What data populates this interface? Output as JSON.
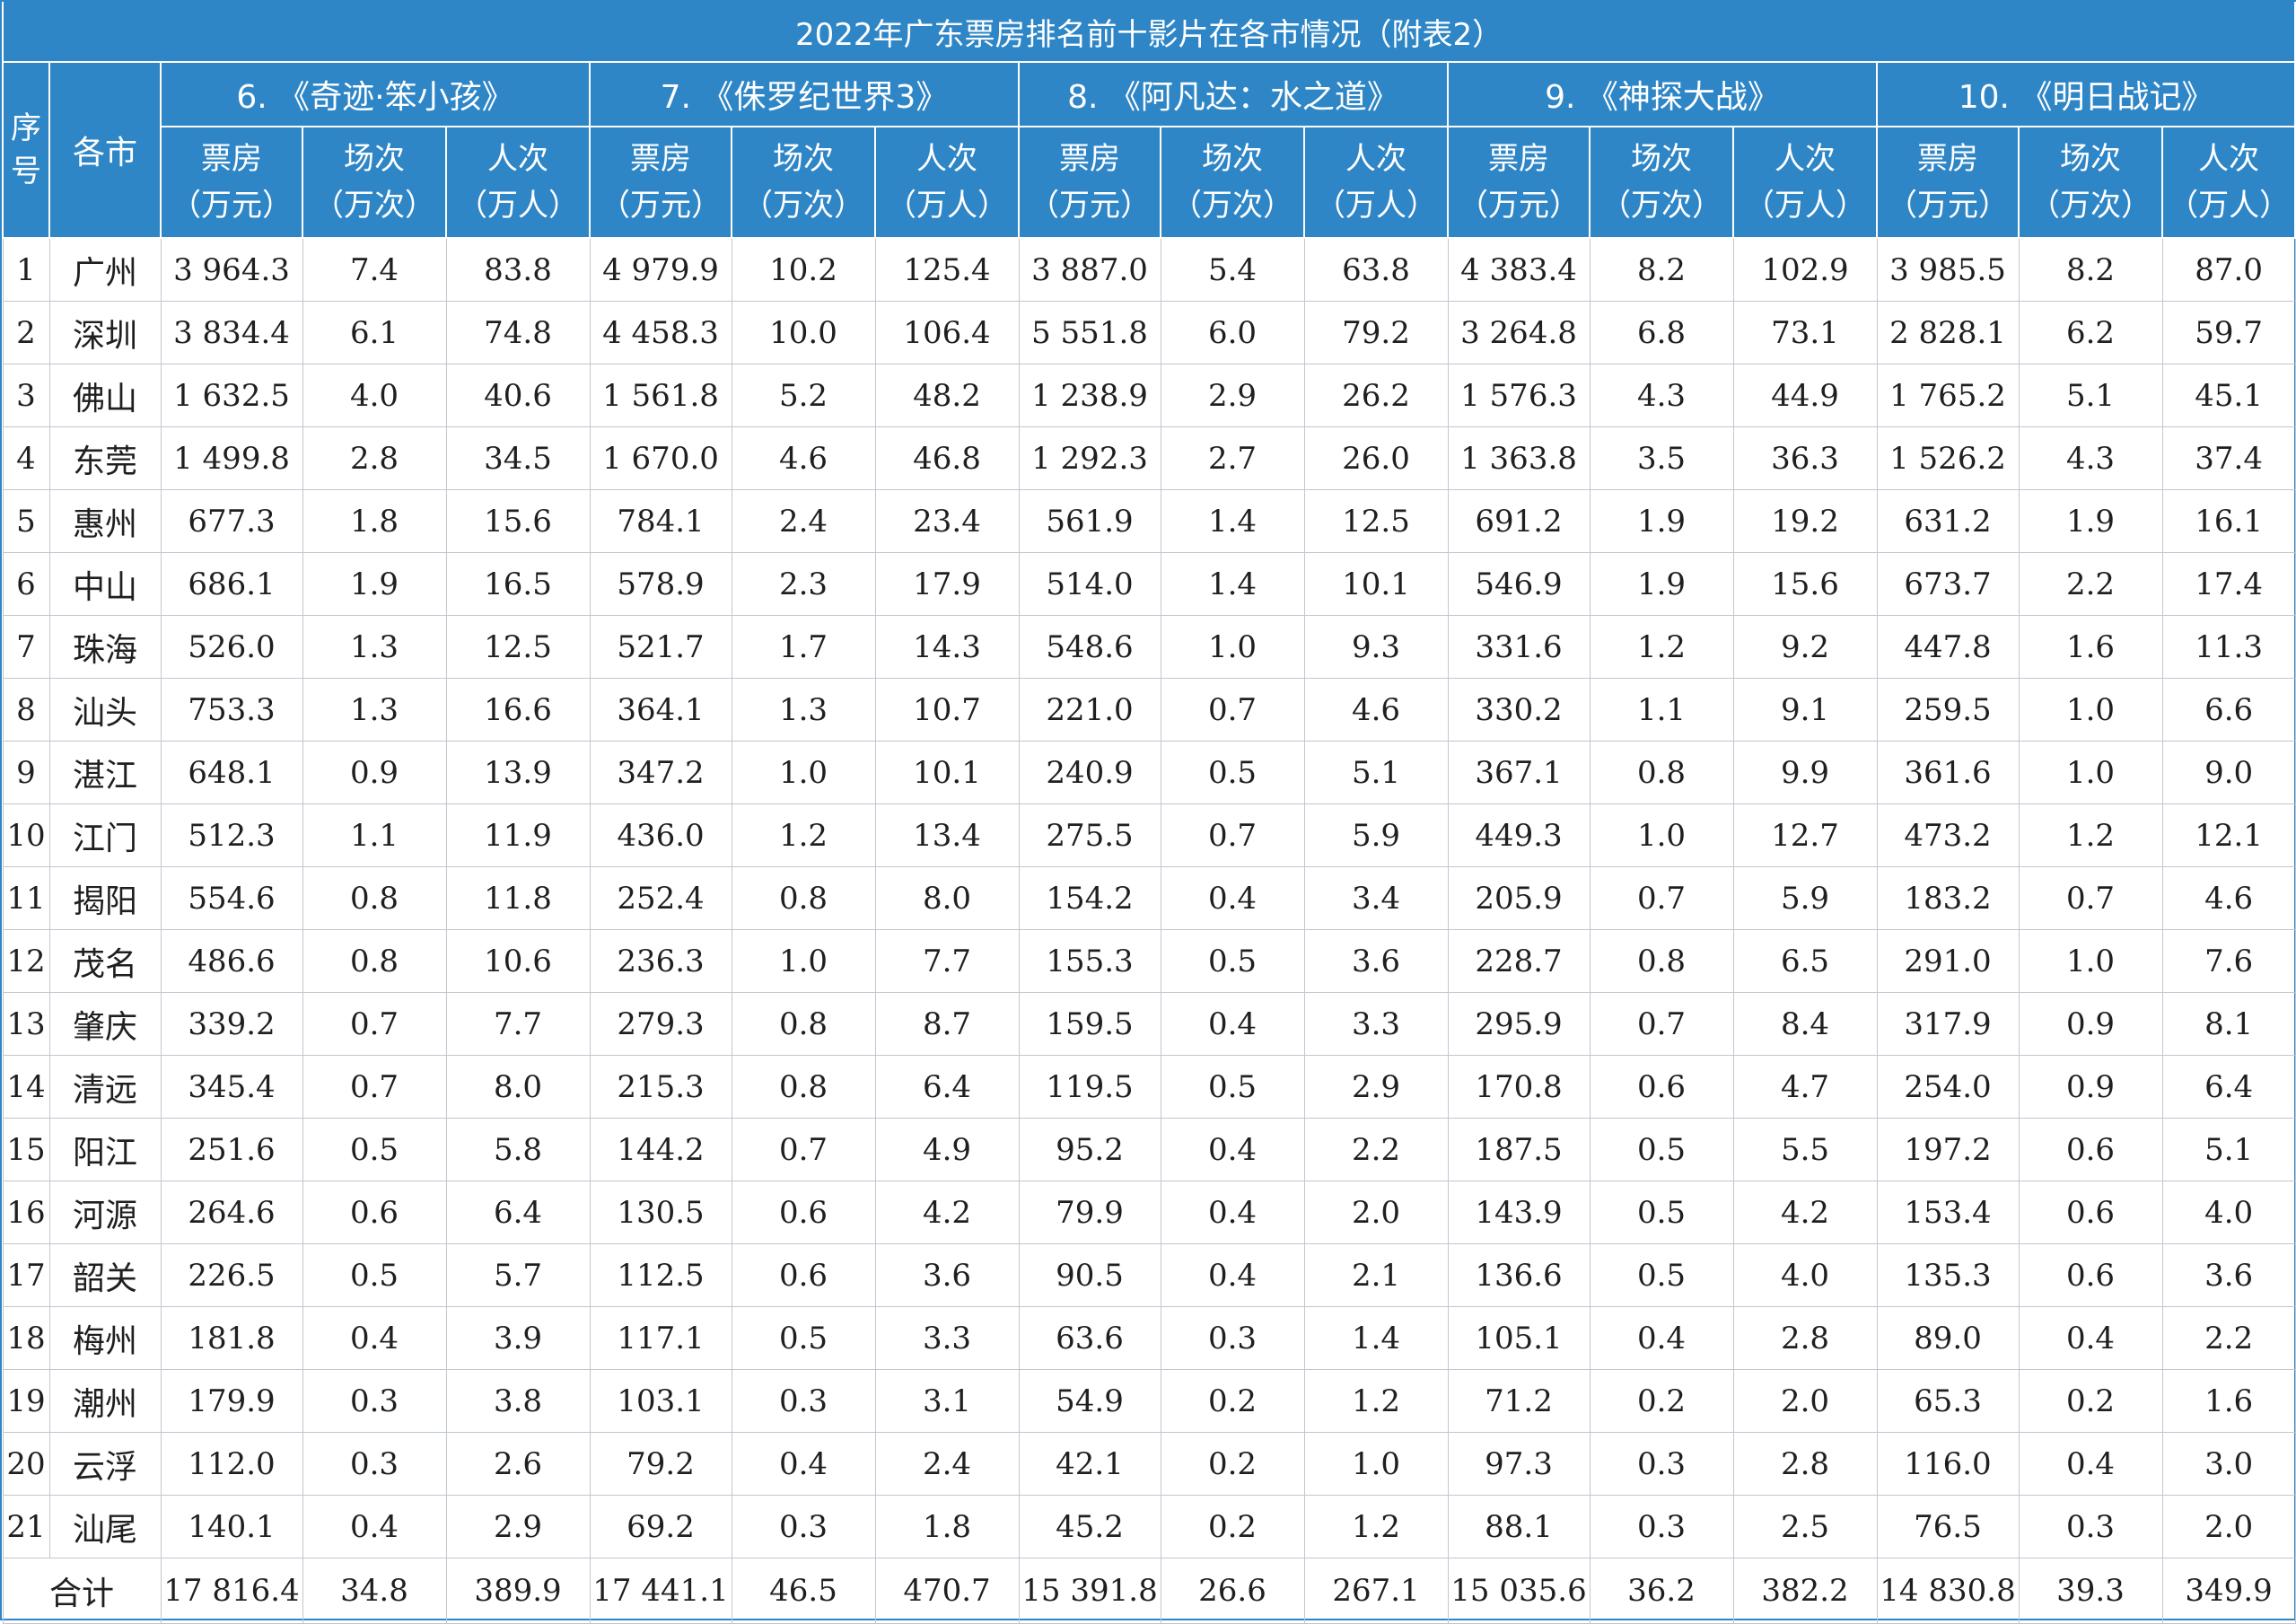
{
  "title": "2022年广东票房排名前十影片在各市情况（附表2）",
  "headers": {
    "index": [
      "序",
      "号"
    ],
    "city": "各市",
    "films": [
      "6. 《奇迹·笨小孩》",
      "7. 《侏罗纪世界3》",
      "8. 《阿凡达：水之道》",
      "9. 《神探大战》",
      "10. 《明日战记》"
    ],
    "metrics": [
      [
        "票房",
        "（万元）"
      ],
      [
        "场次",
        "（万次）"
      ],
      [
        "人次",
        "（万人）"
      ]
    ]
  },
  "rows": [
    {
      "index": "1",
      "city": "广州",
      "values": [
        "3 964.3",
        "7.4",
        "83.8",
        "4 979.9",
        "10.2",
        "125.4",
        "3 887.0",
        "5.4",
        "63.8",
        "4 383.4",
        "8.2",
        "102.9",
        "3 985.5",
        "8.2",
        "87.0"
      ]
    },
    {
      "index": "2",
      "city": "深圳",
      "values": [
        "3 834.4",
        "6.1",
        "74.8",
        "4 458.3",
        "10.0",
        "106.4",
        "5 551.8",
        "6.0",
        "79.2",
        "3 264.8",
        "6.8",
        "73.1",
        "2 828.1",
        "6.2",
        "59.7"
      ]
    },
    {
      "index": "3",
      "city": "佛山",
      "values": [
        "1 632.5",
        "4.0",
        "40.6",
        "1 561.8",
        "5.2",
        "48.2",
        "1 238.9",
        "2.9",
        "26.2",
        "1 576.3",
        "4.3",
        "44.9",
        "1 765.2",
        "5.1",
        "45.1"
      ]
    },
    {
      "index": "4",
      "city": "东莞",
      "values": [
        "1 499.8",
        "2.8",
        "34.5",
        "1 670.0",
        "4.6",
        "46.8",
        "1 292.3",
        "2.7",
        "26.0",
        "1 363.8",
        "3.5",
        "36.3",
        "1 526.2",
        "4.3",
        "37.4"
      ]
    },
    {
      "index": "5",
      "city": "惠州",
      "values": [
        "677.3",
        "1.8",
        "15.6",
        "784.1",
        "2.4",
        "23.4",
        "561.9",
        "1.4",
        "12.5",
        "691.2",
        "1.9",
        "19.2",
        "631.2",
        "1.9",
        "16.1"
      ]
    },
    {
      "index": "6",
      "city": "中山",
      "values": [
        "686.1",
        "1.9",
        "16.5",
        "578.9",
        "2.3",
        "17.9",
        "514.0",
        "1.4",
        "10.1",
        "546.9",
        "1.9",
        "15.6",
        "673.7",
        "2.2",
        "17.4"
      ]
    },
    {
      "index": "7",
      "city": "珠海",
      "values": [
        "526.0",
        "1.3",
        "12.5",
        "521.7",
        "1.7",
        "14.3",
        "548.6",
        "1.0",
        "9.3",
        "331.6",
        "1.2",
        "9.2",
        "447.8",
        "1.6",
        "11.3"
      ]
    },
    {
      "index": "8",
      "city": "汕头",
      "values": [
        "753.3",
        "1.3",
        "16.6",
        "364.1",
        "1.3",
        "10.7",
        "221.0",
        "0.7",
        "4.6",
        "330.2",
        "1.1",
        "9.1",
        "259.5",
        "1.0",
        "6.6"
      ]
    },
    {
      "index": "9",
      "city": "湛江",
      "values": [
        "648.1",
        "0.9",
        "13.9",
        "347.2",
        "1.0",
        "10.1",
        "240.9",
        "0.5",
        "5.1",
        "367.1",
        "0.8",
        "9.9",
        "361.6",
        "1.0",
        "9.0"
      ]
    },
    {
      "index": "10",
      "city": "江门",
      "values": [
        "512.3",
        "1.1",
        "11.9",
        "436.0",
        "1.2",
        "13.4",
        "275.5",
        "0.7",
        "5.9",
        "449.3",
        "1.0",
        "12.7",
        "473.2",
        "1.2",
        "12.1"
      ]
    },
    {
      "index": "11",
      "city": "揭阳",
      "values": [
        "554.6",
        "0.8",
        "11.8",
        "252.4",
        "0.8",
        "8.0",
        "154.2",
        "0.4",
        "3.4",
        "205.9",
        "0.7",
        "5.9",
        "183.2",
        "0.7",
        "4.6"
      ]
    },
    {
      "index": "12",
      "city": "茂名",
      "values": [
        "486.6",
        "0.8",
        "10.6",
        "236.3",
        "1.0",
        "7.7",
        "155.3",
        "0.5",
        "3.6",
        "228.7",
        "0.8",
        "6.5",
        "291.0",
        "1.0",
        "7.6"
      ]
    },
    {
      "index": "13",
      "city": "肇庆",
      "values": [
        "339.2",
        "0.7",
        "7.7",
        "279.3",
        "0.8",
        "8.7",
        "159.5",
        "0.4",
        "3.3",
        "295.9",
        "0.7",
        "8.4",
        "317.9",
        "0.9",
        "8.1"
      ]
    },
    {
      "index": "14",
      "city": "清远",
      "values": [
        "345.4",
        "0.7",
        "8.0",
        "215.3",
        "0.8",
        "6.4",
        "119.5",
        "0.5",
        "2.9",
        "170.8",
        "0.6",
        "4.7",
        "254.0",
        "0.9",
        "6.4"
      ]
    },
    {
      "index": "15",
      "city": "阳江",
      "values": [
        "251.6",
        "0.5",
        "5.8",
        "144.2",
        "0.7",
        "4.9",
        "95.2",
        "0.4",
        "2.2",
        "187.5",
        "0.5",
        "5.5",
        "197.2",
        "0.6",
        "5.1"
      ]
    },
    {
      "index": "16",
      "city": "河源",
      "values": [
        "264.6",
        "0.6",
        "6.4",
        "130.5",
        "0.6",
        "4.2",
        "79.9",
        "0.4",
        "2.0",
        "143.9",
        "0.5",
        "4.2",
        "153.4",
        "0.6",
        "4.0"
      ]
    },
    {
      "index": "17",
      "city": "韶关",
      "values": [
        "226.5",
        "0.5",
        "5.7",
        "112.5",
        "0.6",
        "3.6",
        "90.5",
        "0.4",
        "2.1",
        "136.6",
        "0.5",
        "4.0",
        "135.3",
        "0.6",
        "3.6"
      ]
    },
    {
      "index": "18",
      "city": "梅州",
      "values": [
        "181.8",
        "0.4",
        "3.9",
        "117.1",
        "0.5",
        "3.3",
        "63.6",
        "0.3",
        "1.4",
        "105.1",
        "0.4",
        "2.8",
        "89.0",
        "0.4",
        "2.2"
      ]
    },
    {
      "index": "19",
      "city": "潮州",
      "values": [
        "179.9",
        "0.3",
        "3.8",
        "103.1",
        "0.3",
        "3.1",
        "54.9",
        "0.2",
        "1.2",
        "71.2",
        "0.2",
        "2.0",
        "65.3",
        "0.2",
        "1.6"
      ]
    },
    {
      "index": "20",
      "city": "云浮",
      "values": [
        "112.0",
        "0.3",
        "2.6",
        "79.2",
        "0.4",
        "2.4",
        "42.1",
        "0.2",
        "1.0",
        "97.3",
        "0.3",
        "2.8",
        "116.0",
        "0.4",
        "3.0"
      ]
    },
    {
      "index": "21",
      "city": "汕尾",
      "values": [
        "140.1",
        "0.4",
        "2.9",
        "69.2",
        "0.3",
        "1.8",
        "45.2",
        "0.2",
        "1.2",
        "88.1",
        "0.3",
        "2.5",
        "76.5",
        "0.3",
        "2.0"
      ]
    }
  ],
  "total": {
    "label": "合计",
    "values": [
      "17 816.4",
      "34.8",
      "389.9",
      "17 441.1",
      "46.5",
      "470.7",
      "15 391.8",
      "26.6",
      "267.1",
      "15 035.6",
      "36.2",
      "382.2",
      "14 830.8",
      "39.3",
      "349.9"
    ]
  },
  "colors": {
    "header_bg": "#2f86c6",
    "header_text": "#ffffff",
    "grid_line": "#bfc7cf",
    "body_text": "#1f1f1f"
  }
}
